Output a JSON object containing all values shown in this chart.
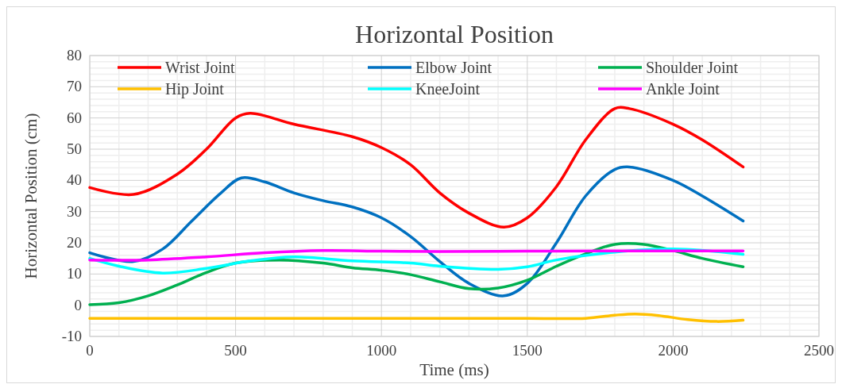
{
  "chart_data": {
    "type": "line",
    "title": "Horizontal Position",
    "xlabel": "Time (ms)",
    "ylabel": "Horizontal Position (cm)",
    "xlim": [
      0,
      2500
    ],
    "xticks": [
      0,
      500,
      1000,
      1500,
      2000,
      2500
    ],
    "ylim": [
      -10,
      80
    ],
    "yticks": [
      -10,
      0,
      10,
      20,
      30,
      40,
      50,
      60,
      70,
      80
    ],
    "grid": true,
    "legend": "top",
    "marker": "none",
    "line_style": "solid",
    "series": [
      {
        "name": "Wrist Joint",
        "color": "#ff0000",
        "x": [
          0,
          150,
          300,
          400,
          500,
          550,
          700,
          900,
          1000,
          1100,
          1200,
          1300,
          1420,
          1500,
          1600,
          1700,
          1800,
          1850,
          2000,
          2100,
          2240
        ],
        "values": [
          37.7,
          35.5,
          42,
          50,
          60,
          61.5,
          58,
          54,
          50.5,
          45,
          36,
          29.5,
          25,
          28,
          38,
          53,
          63,
          63,
          58,
          53,
          44.3
        ]
      },
      {
        "name": "Elbow Joint",
        "color": "#0070c0",
        "x": [
          0,
          150,
          250,
          350,
          450,
          520,
          600,
          700,
          800,
          900,
          1000,
          1100,
          1200,
          1300,
          1420,
          1500,
          1600,
          1700,
          1800,
          1850,
          2000,
          2100,
          2240
        ],
        "values": [
          16.8,
          14,
          18,
          27,
          36,
          40.8,
          39.5,
          36,
          33.5,
          31.5,
          28,
          22,
          14,
          7,
          3,
          7,
          20,
          35,
          43.5,
          44.3,
          40,
          35,
          27
        ]
      },
      {
        "name": "Shoulder Joint",
        "color": "#00b050",
        "x": [
          0,
          100,
          200,
          300,
          400,
          500,
          650,
          800,
          900,
          1000,
          1100,
          1200,
          1300,
          1400,
          1500,
          1600,
          1700,
          1800,
          1900,
          2000,
          2100,
          2240
        ],
        "values": [
          0.2,
          0.8,
          3,
          6.5,
          10.5,
          13.5,
          14.5,
          13.5,
          12,
          11.2,
          9.8,
          7.5,
          5.3,
          5.5,
          8,
          12.5,
          16.5,
          19.5,
          19.5,
          17.5,
          15,
          12.3
        ]
      },
      {
        "name": "Hip Joint",
        "color": "#ffc000",
        "x": [
          0,
          500,
          1000,
          1500,
          1700,
          1800,
          1870,
          1950,
          2050,
          2150,
          2240
        ],
        "values": [
          -4.2,
          -4.2,
          -4.2,
          -4.2,
          -4.2,
          -3.2,
          -2.8,
          -3.3,
          -4.6,
          -5.2,
          -4.8
        ]
      },
      {
        "name": "KneeJoint",
        "color": "#00ffff",
        "x": [
          0,
          100,
          250,
          400,
          550,
          700,
          900,
          1100,
          1200,
          1400,
          1500,
          1600,
          1800,
          2000,
          2240
        ],
        "values": [
          15,
          12.5,
          10.3,
          11.8,
          14.2,
          15.5,
          14.2,
          13.5,
          12.5,
          11.5,
          12.3,
          14.5,
          17,
          18,
          16.3
        ]
      },
      {
        "name": "Ankle Joint",
        "color": "#ff00ff",
        "x": [
          0,
          200,
          400,
          600,
          800,
          1000,
          1200,
          1500,
          1800,
          2240
        ],
        "values": [
          14.5,
          14.5,
          15.5,
          16.8,
          17.5,
          17.3,
          17.2,
          17.3,
          17.4,
          17.4
        ]
      }
    ]
  }
}
